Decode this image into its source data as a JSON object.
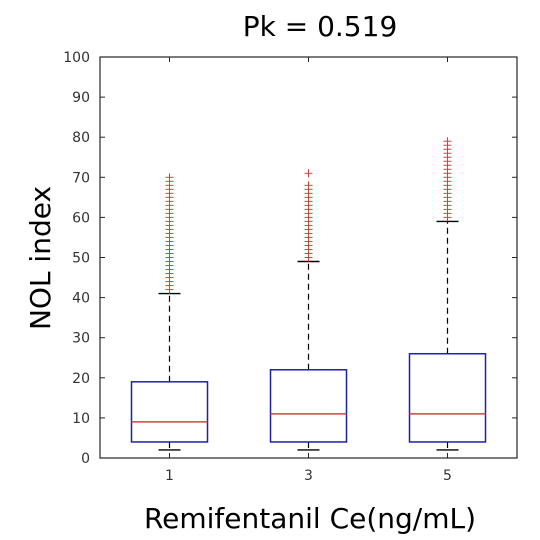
{
  "chart_data": {
    "type": "box",
    "title": "Pk = 0.519",
    "xlabel": "Remifentanil Ce(ng/mL)",
    "ylabel": "NOL index",
    "categories": [
      "1",
      "3",
      "5"
    ],
    "ylim": [
      0,
      100
    ],
    "yticks": [
      "0",
      "10",
      "20",
      "30",
      "40",
      "50",
      "60",
      "70",
      "80",
      "90",
      "100"
    ],
    "grid": false,
    "boxes": [
      {
        "category": "1",
        "whisker_low": 2,
        "q1": 4,
        "median": 9,
        "q3": 19,
        "whisker_high": 41,
        "outliers_range": [
          41.5,
          70
        ],
        "outliers": [
          42,
          43,
          44,
          45,
          46,
          47,
          48,
          49,
          50,
          51,
          52,
          53,
          54,
          55,
          56,
          57,
          58,
          59,
          60,
          61,
          62,
          63,
          64,
          65,
          66,
          67,
          68,
          69,
          70
        ]
      },
      {
        "category": "3",
        "whisker_low": 2,
        "q1": 4,
        "median": 11,
        "q3": 22,
        "whisker_high": 49,
        "outliers_range": [
          50,
          71
        ],
        "outliers": [
          50,
          51,
          52,
          53,
          54,
          55,
          56,
          57,
          58,
          59,
          60,
          61,
          62,
          63,
          64,
          65,
          66,
          67,
          68,
          71
        ]
      },
      {
        "category": "5",
        "whisker_low": 2,
        "q1": 4,
        "median": 11,
        "q3": 26,
        "whisker_high": 59,
        "outliers_range": [
          60,
          79
        ],
        "outliers": [
          60,
          61,
          62,
          63,
          64,
          65,
          66,
          67,
          68,
          69,
          70,
          71,
          72,
          73,
          74,
          75,
          76,
          77,
          78,
          79
        ]
      }
    ],
    "colors": {
      "box": "#1f1fb4",
      "median": "#e03c3c",
      "whisker": "#000000",
      "outlier": "#e03c3c",
      "axis": "#262626"
    }
  }
}
